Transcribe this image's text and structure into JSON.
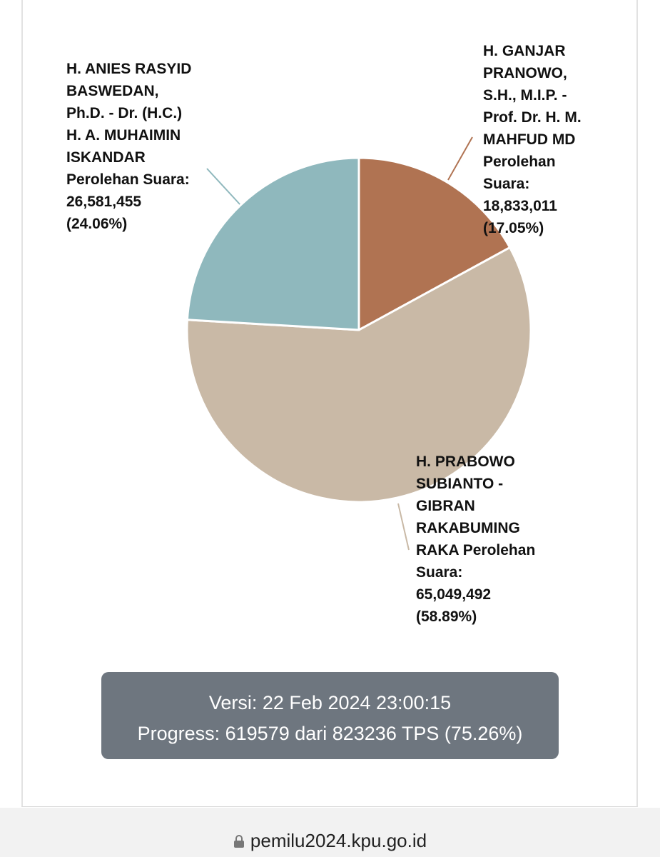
{
  "chart_data": {
    "type": "pie",
    "categories": [
      "H. GANJAR PRANOWO, S.H., M.I.P. - Prof. Dr. H. M. MAHFUD MD",
      "H. PRABOWO SUBIANTO - GIBRAN RAKABUMING RAKA",
      "H. ANIES RASYID BASWEDAN, Ph.D. - Dr. (H.C.) H. A. MUHAIMIN ISKANDAR"
    ],
    "values": [
      17.05,
      58.89,
      24.06
    ],
    "value_labels": [
      "(17.05%)",
      "(58.89%)",
      "(24.06%)"
    ],
    "votes": [
      18833011,
      65049492,
      26581455
    ],
    "vote_labels": [
      "18,833,011",
      "65,049,492",
      "26,581,455"
    ],
    "value_prefix": "Perolehan Suara:",
    "colors": [
      "#b07352",
      "#c9b9a6",
      "#8fb8bd"
    ]
  },
  "info": {
    "version": "Versi: 22 Feb 2024 23:00:15",
    "progress": "Progress: 619579 dari 823236 TPS (75.26%)"
  },
  "url": "pemilu2024.kpu.go.id"
}
